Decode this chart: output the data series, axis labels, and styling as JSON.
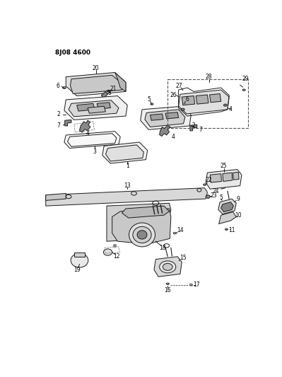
{
  "title": "8J08 4600",
  "bg_color": "#ffffff",
  "line_color": "#1a1a1a",
  "fig_width": 3.99,
  "fig_height": 5.33,
  "dpi": 100
}
